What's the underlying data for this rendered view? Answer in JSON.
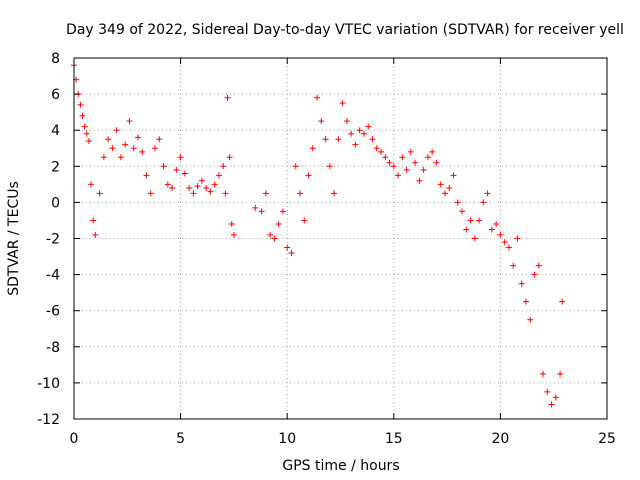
{
  "chart_data": {
    "type": "scatter",
    "title": "Day 349 of 2022, Sidereal Day-to-day VTEC variation (SDTVAR) for receiver yell",
    "xlabel": "GPS time / hours",
    "ylabel": "SDTVAR / TECUs",
    "xlim": [
      0,
      25
    ],
    "ylim": [
      -12,
      8
    ],
    "xticks": [
      0,
      5,
      10,
      15,
      20,
      25
    ],
    "yticks": [
      -12,
      -10,
      -8,
      -6,
      -4,
      -2,
      0,
      2,
      4,
      6,
      8
    ],
    "xtick_labels": [
      "0",
      "5",
      "10",
      "15",
      "20",
      "25"
    ],
    "ytick_labels": [
      "-12",
      "-10",
      "-8",
      "-6",
      "-4",
      "-2",
      "0",
      "2",
      "4",
      "6",
      "8"
    ],
    "grid": true,
    "marker": "+",
    "series": [
      {
        "name": "SDTVAR",
        "color": "#ff0000",
        "x": [
          0.0,
          0.1,
          0.2,
          0.3,
          0.4,
          0.5,
          0.6,
          0.7,
          0.8,
          0.9,
          1.0,
          1.2,
          1.4,
          1.6,
          1.8,
          2.0,
          2.2,
          2.4,
          2.6,
          2.8,
          3.0,
          3.2,
          3.4,
          3.6,
          3.8,
          4.0,
          4.2,
          4.4,
          4.6,
          4.8,
          5.0,
          5.2,
          5.4,
          5.6,
          5.8,
          6.0,
          6.2,
          6.4,
          6.6,
          6.8,
          7.0,
          7.1,
          7.2,
          7.3,
          7.4,
          7.5,
          8.5,
          8.8,
          9.0,
          9.2,
          9.4,
          9.6,
          9.8,
          10.0,
          10.2,
          10.4,
          10.6,
          10.8,
          11.0,
          11.2,
          11.4,
          11.6,
          11.8,
          12.0,
          12.2,
          12.4,
          12.6,
          12.8,
          13.0,
          13.2,
          13.4,
          13.6,
          13.8,
          14.0,
          14.2,
          14.4,
          14.6,
          14.8,
          15.0,
          15.2,
          15.4,
          15.6,
          15.8,
          16.0,
          16.2,
          16.4,
          16.6,
          16.8,
          17.0,
          17.2,
          17.4,
          17.6,
          17.8,
          18.0,
          18.2,
          18.4,
          18.6,
          18.8,
          19.0,
          19.2,
          19.4,
          19.6,
          19.8,
          20.0,
          20.2,
          20.4,
          20.6,
          20.8,
          21.0,
          21.2,
          21.4,
          21.6,
          21.8,
          22.0,
          22.2,
          22.4,
          22.6,
          22.8,
          22.9
        ],
        "y": [
          7.6,
          6.8,
          6.0,
          5.4,
          4.8,
          4.2,
          3.8,
          3.4,
          1.0,
          -1.0,
          -1.8,
          0.5,
          2.5,
          3.5,
          3.0,
          4.0,
          2.5,
          3.2,
          4.5,
          3.0,
          3.6,
          2.8,
          1.5,
          0.5,
          3.0,
          3.5,
          2.0,
          1.0,
          0.8,
          1.8,
          2.5,
          1.6,
          0.8,
          0.5,
          0.9,
          1.2,
          0.8,
          0.6,
          1.0,
          1.5,
          2.0,
          0.5,
          5.8,
          2.5,
          -1.2,
          -1.8,
          -0.3,
          -0.5,
          0.5,
          -1.8,
          -2.0,
          -1.2,
          -0.5,
          -2.5,
          -2.8,
          2.0,
          0.5,
          -1.0,
          1.5,
          3.0,
          5.8,
          4.5,
          3.5,
          2.0,
          0.5,
          3.5,
          5.5,
          4.5,
          3.8,
          3.2,
          4.0,
          3.8,
          4.2,
          3.5,
          3.0,
          2.8,
          2.5,
          2.2,
          2.0,
          1.5,
          2.5,
          1.8,
          2.8,
          2.2,
          1.2,
          1.8,
          2.5,
          2.8,
          2.2,
          1.0,
          0.5,
          0.8,
          1.5,
          0.0,
          -0.5,
          -1.5,
          -1.0,
          -2.0,
          -1.0,
          0.0,
          0.5,
          -1.5,
          -1.2,
          -1.8,
          -2.2,
          -2.5,
          -3.5,
          -2.0,
          -4.5,
          -5.5,
          -6.5,
          -4.0,
          -3.5,
          -9.5,
          -10.5,
          -11.2,
          -10.8,
          -9.5,
          -5.5
        ]
      }
    ]
  }
}
